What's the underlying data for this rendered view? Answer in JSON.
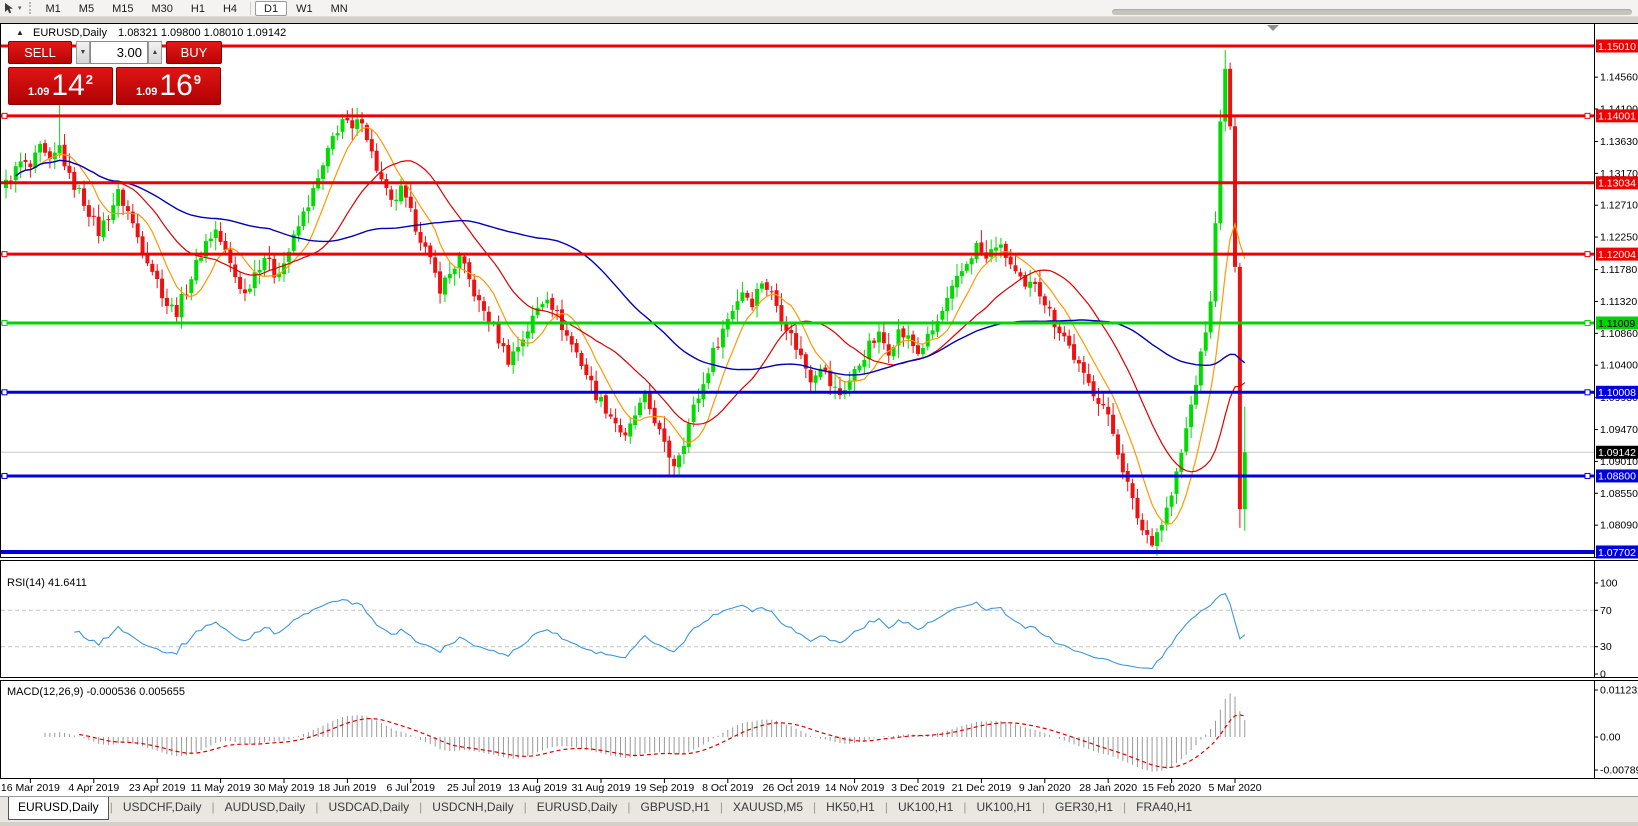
{
  "toolbar": {
    "timeframes": [
      "M1",
      "M5",
      "M15",
      "M30",
      "H1",
      "H4",
      "D1",
      "W1",
      "MN"
    ],
    "active_timeframe": "D1"
  },
  "chart": {
    "title_marker": "▲",
    "title_symbol": "EURUSD,Daily",
    "title_ohlc": "1.08321 1.09800 1.08010 1.09142"
  },
  "trade_panel": {
    "sell_label": "SELL",
    "buy_label": "BUY",
    "spread": "3.00",
    "stepper_down": "▼",
    "stepper_up": "▲",
    "sell_price": {
      "prefix": "1.09",
      "big": "14",
      "sup": "2"
    },
    "buy_price": {
      "prefix": "1.09",
      "big": "16",
      "sup": "9"
    }
  },
  "price_axis": {
    "ticks": [
      "1.14560",
      "1.14100",
      "1.13630",
      "1.13170",
      "1.12710",
      "1.12250",
      "1.11780",
      "1.11320",
      "1.10860",
      "1.10400",
      "1.09930",
      "1.09470",
      "1.09010",
      "1.08550",
      "1.08090",
      "1.07620"
    ],
    "current_price": {
      "label": "1.09142",
      "value": 1.09142,
      "line_color": "#c8c8c8",
      "tag_bg": "#000000",
      "tag_fg": "#ffffff"
    }
  },
  "hlines": [
    {
      "price": 1.1501,
      "label": "1.15010",
      "color": "#ee0000",
      "width": 3,
      "markers": false,
      "tag_fg": "#ffffff"
    },
    {
      "price": 1.14001,
      "label": "1.14001",
      "color": "#ee0000",
      "width": 3,
      "markers": true,
      "tag_fg": "#ffffff"
    },
    {
      "price": 1.13034,
      "label": "1.13034",
      "color": "#ee0000",
      "width": 3,
      "markers": false,
      "tag_fg": "#ffffff"
    },
    {
      "price": 1.12004,
      "label": "1.12004",
      "color": "#ee0000",
      "width": 3,
      "markers": true,
      "tag_fg": "#ffffff"
    },
    {
      "price": 1.11009,
      "label": "1.11009",
      "color": "#00d400",
      "width": 3,
      "markers": true,
      "tag_fg": "#000000"
    },
    {
      "price": 1.10008,
      "label": "1.10008",
      "color": "#0000dd",
      "width": 3,
      "markers": true,
      "tag_fg": "#ffffff"
    },
    {
      "price": 1.088,
      "label": "1.08800",
      "color": "#0000dd",
      "width": 3,
      "markers": true,
      "tag_fg": "#ffffff"
    },
    {
      "price": 1.07702,
      "label": "1.07702",
      "color": "#0000dd",
      "width": 4,
      "markers": false,
      "tag_fg": "#ffffff"
    }
  ],
  "indicators": {
    "rsi": {
      "label": "RSI(14) 41.6411",
      "period": 14,
      "current": 41.6411,
      "level_lines": [
        70,
        30
      ],
      "axis": [
        {
          "label": "100",
          "value": 100
        },
        {
          "label": "70",
          "value": 70
        },
        {
          "label": "30",
          "value": 30
        },
        {
          "label": "0",
          "value": 0
        }
      ],
      "line_color": "#3c96dc"
    },
    "macd": {
      "label": "MACD(12,26,9) -0.000536 0.005655",
      "fast": 12,
      "slow": 26,
      "signal": 9,
      "current_main": -0.000536,
      "current_signal": 0.005655,
      "axis": [
        {
          "label": "0.011232",
          "value": 0.011232
        },
        {
          "label": "0.00",
          "value": 0
        },
        {
          "label": "-0.007894",
          "value": -0.007894
        }
      ],
      "histogram_color": "#9a9a9a",
      "signal_color": "#e00000"
    }
  },
  "date_axis": {
    "labels": [
      "16 Mar 2019",
      "4 Apr 2019",
      "23 Apr 2019",
      "11 May 2019",
      "30 May 2019",
      "18 Jun 2019",
      "6 Jul 2019",
      "25 Jul 2019",
      "13 Aug 2019",
      "31 Aug 2019",
      "19 Sep 2019",
      "8 Oct 2019",
      "26 Oct 2019",
      "14 Nov 2019",
      "3 Dec 2019",
      "21 Dec 2019",
      "9 Jan 2020",
      "28 Jan 2020",
      "15 Feb 2020",
      "5 Mar 2020"
    ]
  },
  "tabs": {
    "active_index": 0,
    "items": [
      "EURUSD,Daily",
      "USDCHF,Daily",
      "AUDUSD,Daily",
      "USDCAD,Daily",
      "USDCNH,Daily",
      "EURUSD,Daily",
      "GBPUSD,H1",
      "XAUUSD,M5",
      "HK50,H1",
      "UK100,H1",
      "UK100,H1",
      "GER30,H1",
      "FRA40,H1"
    ]
  },
  "chart_data": {
    "type": "candlestick",
    "symbol": "EURUSD",
    "timeframe": "Daily",
    "title": "EURUSD,Daily 1.08321 1.09800 1.08010 1.09142",
    "x_range": [
      "16 Mar 2019",
      "13 Mar 2020"
    ],
    "y_ticks": [
      1.1456,
      1.141,
      1.1363,
      1.1317,
      1.1271,
      1.1225,
      1.1178,
      1.1132,
      1.1086,
      1.104,
      1.0993,
      1.0947,
      1.0901,
      1.0855,
      1.0809,
      1.0762
    ],
    "horizontal_lines": [
      1.1501,
      1.14001,
      1.13034,
      1.12004,
      1.11009,
      1.10008,
      1.088,
      1.07702
    ],
    "bull_color": "#00dc00",
    "bear_color": "#ee1111",
    "candle_count": 255,
    "close_keypoints": [
      [
        0,
        1.1302
      ],
      [
        3,
        1.1332
      ],
      [
        5,
        1.1325
      ],
      [
        7,
        1.1352
      ],
      [
        9,
        1.133
      ],
      [
        11,
        1.1355
      ],
      [
        13,
        1.131
      ],
      [
        15,
        1.129
      ],
      [
        17,
        1.1262
      ],
      [
        19,
        1.1232
      ],
      [
        21,
        1.1258
      ],
      [
        23,
        1.1288
      ],
      [
        25,
        1.1262
      ],
      [
        27,
        1.1225
      ],
      [
        29,
        1.1195
      ],
      [
        31,
        1.1162
      ],
      [
        33,
        1.1128
      ],
      [
        35,
        1.1118
      ],
      [
        37,
        1.115
      ],
      [
        39,
        1.1185
      ],
      [
        41,
        1.1218
      ],
      [
        43,
        1.1235
      ],
      [
        45,
        1.1202
      ],
      [
        47,
        1.1168
      ],
      [
        49,
        1.1142
      ],
      [
        51,
        1.1175
      ],
      [
        53,
        1.1198
      ],
      [
        55,
        1.1172
      ],
      [
        57,
        1.1188
      ],
      [
        59,
        1.1222
      ],
      [
        61,
        1.1258
      ],
      [
        63,
        1.129
      ],
      [
        65,
        1.1325
      ],
      [
        67,
        1.1368
      ],
      [
        69,
        1.1395
      ],
      [
        71,
        1.1378
      ],
      [
        73,
        1.1398
      ],
      [
        75,
        1.1345
      ],
      [
        77,
        1.1305
      ],
      [
        79,
        1.1272
      ],
      [
        81,
        1.1292
      ],
      [
        83,
        1.1258
      ],
      [
        85,
        1.1225
      ],
      [
        87,
        1.1188
      ],
      [
        89,
        1.1152
      ],
      [
        91,
        1.1172
      ],
      [
        93,
        1.1195
      ],
      [
        95,
        1.1162
      ],
      [
        97,
        1.1128
      ],
      [
        99,
        1.1108
      ],
      [
        101,
        1.1078
      ],
      [
        103,
        1.1048
      ],
      [
        105,
        1.1068
      ],
      [
        107,
        1.1092
      ],
      [
        109,
        1.1122
      ],
      [
        111,
        1.1142
      ],
      [
        113,
        1.1112
      ],
      [
        115,
        1.1082
      ],
      [
        117,
        1.1058
      ],
      [
        119,
        1.1028
      ],
      [
        121,
        1.0998
      ],
      [
        123,
        1.0978
      ],
      [
        125,
        1.0958
      ],
      [
        127,
        1.0932
      ],
      [
        129,
        1.0968
      ],
      [
        131,
        1.0992
      ],
      [
        133,
        1.0962
      ],
      [
        135,
        1.0922
      ],
      [
        137,
        1.0898
      ],
      [
        139,
        1.0932
      ],
      [
        141,
        1.0978
      ],
      [
        143,
        1.1012
      ],
      [
        145,
        1.1058
      ],
      [
        147,
        1.1092
      ],
      [
        149,
        1.1122
      ],
      [
        151,
        1.1148
      ],
      [
        153,
        1.1132
      ],
      [
        155,
        1.1162
      ],
      [
        157,
        1.1142
      ],
      [
        159,
        1.1112
      ],
      [
        161,
        1.1082
      ],
      [
        163,
        1.1052
      ],
      [
        165,
        1.1022
      ],
      [
        167,
        1.1042
      ],
      [
        169,
        1.1012
      ],
      [
        171,
        1.0998
      ],
      [
        173,
        1.1018
      ],
      [
        175,
        1.1042
      ],
      [
        177,
        1.1068
      ],
      [
        179,
        1.1082
      ],
      [
        181,
        1.1062
      ],
      [
        183,
        1.1088
      ],
      [
        185,
        1.1078
      ],
      [
        187,
        1.1058
      ],
      [
        189,
        1.1078
      ],
      [
        191,
        1.1102
      ],
      [
        193,
        1.1132
      ],
      [
        195,
        1.1162
      ],
      [
        197,
        1.1188
      ],
      [
        199,
        1.1212
      ],
      [
        201,
        1.1192
      ],
      [
        203,
        1.1215
      ],
      [
        205,
        1.1198
      ],
      [
        207,
        1.1172
      ],
      [
        209,
        1.1148
      ],
      [
        211,
        1.1162
      ],
      [
        213,
        1.1132
      ],
      [
        215,
        1.1102
      ],
      [
        217,
        1.1082
      ],
      [
        219,
        1.1052
      ],
      [
        221,
        1.1022
      ],
      [
        223,
        1.1002
      ],
      [
        225,
        1.0982
      ],
      [
        227,
        1.0942
      ],
      [
        229,
        1.0892
      ],
      [
        231,
        1.0842
      ],
      [
        233,
        1.0802
      ],
      [
        235,
        1.0788
      ],
      [
        237,
        1.0812
      ],
      [
        239,
        1.0852
      ],
      [
        241,
        1.0912
      ],
      [
        243,
        1.0982
      ],
      [
        245,
        1.1052
      ],
      [
        247,
        1.1132
      ],
      [
        248,
        1.1245
      ],
      [
        249,
        1.1392
      ],
      [
        250,
        1.1468
      ],
      [
        251,
        1.1385
      ],
      [
        252,
        1.1182
      ],
      [
        253,
        1.0832
      ],
      [
        254,
        1.09142
      ]
    ],
    "wick_overrides": [
      [
        11,
        1.1428,
        null
      ],
      [
        72,
        1.1412,
        null
      ],
      [
        136,
        null,
        1.0879
      ],
      [
        235,
        null,
        1.0777
      ],
      [
        250,
        1.1495,
        null
      ],
      [
        253,
        null,
        1.0805
      ]
    ],
    "last_candle": {
      "open": 1.08321,
      "high": 1.098,
      "low": 1.0801,
      "close": 1.09142
    },
    "moving_averages": [
      {
        "period": 8,
        "color": "#ff9900",
        "width": 1.2
      },
      {
        "period": 21,
        "color": "#dd0000",
        "width": 1.2
      },
      {
        "period": 55,
        "color": "#0000bb",
        "width": 1.4
      }
    ]
  }
}
